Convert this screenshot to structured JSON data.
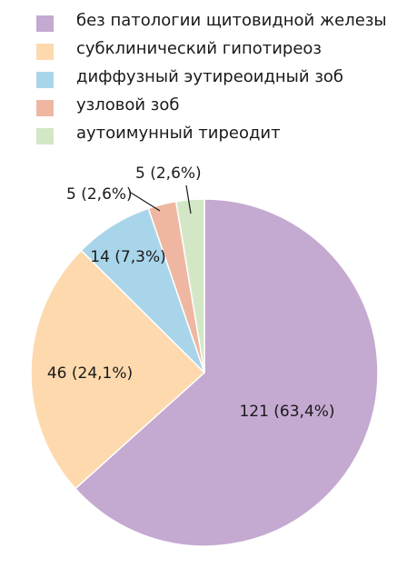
{
  "chart_data": {
    "type": "pie",
    "series": [
      {
        "name": "без патологии щитовидной железы",
        "value": 121,
        "label": "121 (63,4%)",
        "color": "#c4a9d0"
      },
      {
        "name": "субклинический гипотиреоз",
        "value": 46,
        "label": "46 (24,1%)",
        "color": "#fdd9ad"
      },
      {
        "name": "диффузный эутиреоидный зоб",
        "value": 14,
        "label": "14 (7,3%)",
        "color": "#a9d5ea"
      },
      {
        "name": "узловой зоб",
        "value": 5,
        "label": "5 (2,6%)",
        "color": "#efb7a1"
      },
      {
        "name": "аутоимунный тиреодит",
        "value": 5,
        "label": "5 (2,6%)",
        "color": "#d3e7c7"
      }
    ],
    "legend_position": "top-left",
    "start_angle_deg": 0,
    "direction": "clockwise"
  }
}
